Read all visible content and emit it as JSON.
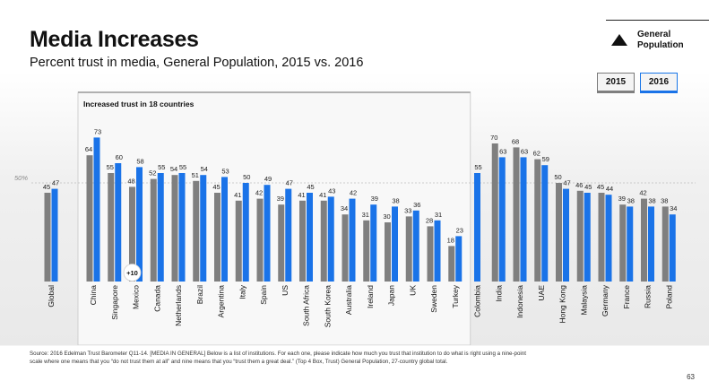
{
  "slide": {
    "title": "Media Increases",
    "subtitle": "Percent trust in media, General Population, 2015 vs. 2016",
    "audience": [
      "General",
      "Population"
    ],
    "source": "Source: 2016 Edelman Trust Barometer Q11-14. [MEDIA IN GENERAL] Below is a list of institutions. For each one, please indicate how much you trust that institution to do what is right using a nine-point scale where one means that you “do not trust them at all” and nine means that you “trust them a great deal.” (Top 4 Box, Trust) General Population, 27-country global total.",
    "page_number": "63"
  },
  "colors": {
    "series_2015": "#7f7f7f",
    "series_2016": "#1a73e8",
    "highlight_fill": "#f8f8f8",
    "highlight_border": "#cfcfcf"
  },
  "chart_data": {
    "type": "bar",
    "title": "",
    "ylabel": "",
    "xlabel": "",
    "ylim": [
      0,
      80
    ],
    "categories": [
      "Global",
      "China",
      "Singapore",
      "Mexico",
      "Canada",
      "Netherlands",
      "Brazil",
      "Argentina",
      "Italy",
      "Spain",
      "US",
      "South Africa",
      "South Korea",
      "Australia",
      "Ireland",
      "Japan",
      "UK",
      "Sweden",
      "Turkey",
      "Colombia",
      "India",
      "Indonesia",
      "UAE",
      "Hong Kong",
      "Malaysia",
      "Germany",
      "France",
      "Russia",
      "Poland"
    ],
    "series": [
      {
        "name": "2015",
        "values": [
          45,
          64,
          55,
          48,
          52,
          54,
          51,
          45,
          41,
          42,
          39,
          41,
          41,
          34,
          31,
          30,
          33,
          28,
          18,
          null,
          70,
          68,
          62,
          50,
          46,
          45,
          39,
          42,
          38
        ]
      },
      {
        "name": "2016",
        "values": [
          47,
          73,
          60,
          58,
          55,
          55,
          54,
          53,
          50,
          49,
          47,
          45,
          43,
          42,
          39,
          38,
          36,
          31,
          23,
          55,
          63,
          63,
          59,
          47,
          45,
          44,
          38,
          38,
          34
        ]
      }
    ],
    "reference_line": {
      "value": 50,
      "label": "50%"
    },
    "highlight_group": {
      "label": "Increased trust in 18 countries",
      "from": "China",
      "to": "Turkey"
    },
    "annotation": {
      "label": "+10",
      "category": "Mexico"
    },
    "legend": [
      "2015",
      "2016"
    ]
  }
}
